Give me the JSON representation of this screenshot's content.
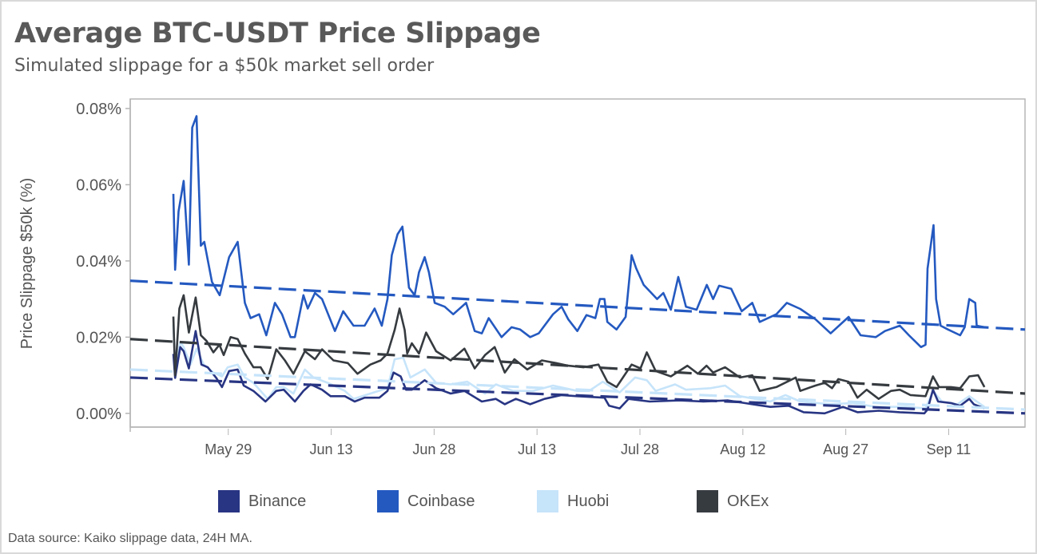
{
  "title": "Average BTC-USDT Price Slippage",
  "subtitle": "Simulated slippage for a $50k market sell order",
  "footer": "Data source: Kaiko slippage data, 24H MA.",
  "chart_data": {
    "type": "line",
    "title": "Average BTC-USDT Price Slippage",
    "subtitle": "Simulated slippage for a $50k market sell order",
    "xlabel": "",
    "ylabel": "Price Slippage $50k (%)",
    "x_format": "MM-DD HH:MM",
    "xlim": [
      "05-14 17:00",
      "09-22 03:00"
    ],
    "ylim": [
      -0.0036,
      0.0825
    ],
    "yticks": [
      0,
      0.02,
      0.04,
      0.06,
      0.08
    ],
    "ytick_labels": [
      "0.00%",
      "0.02%",
      "0.04%",
      "0.06%",
      "0.08%"
    ],
    "xticks": [
      "05-29 00:00",
      "06-13 00:00",
      "06-28 00:00",
      "07-13 00:00",
      "07-28 00:00",
      "08-12 00:00",
      "08-27 00:00",
      "09-11 00:00"
    ],
    "xtick_labels": [
      "May 29",
      "Jun 13",
      "Jun 28",
      "Jul 13",
      "Jul 28",
      "Aug 12",
      "Aug 27",
      "Sep 11"
    ],
    "grid": false,
    "legend_position": "bottom",
    "series": [
      {
        "name": "Binance",
        "color": "#283583",
        "x": [
          "05-21 00:00",
          "05-21 06:00",
          "05-22 00:00",
          "05-22 12:00",
          "05-23 06:00",
          "05-24 06:00",
          "05-25 02:00",
          "05-26 00:00",
          "05-27 06:00",
          "05-28 02:00",
          "05-29 03:00",
          "05-30 09:00",
          "05-31 06:00",
          "06-01 16:00",
          "06-03 10:00",
          "06-05 00:00",
          "06-06 02:00",
          "06-07 17:00",
          "06-08 23:00",
          "06-10 00:00",
          "06-11 16:00",
          "06-12 22:00",
          "06-15 00:00",
          "06-16 10:00",
          "06-17 21:00",
          "06-20 00:00",
          "06-21 05:00",
          "06-22 02:00",
          "06-23 03:00",
          "06-23 22:00",
          "06-24 18:00",
          "06-26 15:00",
          "06-28 07:00",
          "06-30 10:00",
          "07-02 10:00",
          "07-04 23:00",
          "07-07 00:00",
          "07-08 07:00",
          "07-09 22:00",
          "07-12 00:00",
          "07-14 02:00",
          "07-16 14:00",
          "07-18 21:00",
          "07-22 20:00",
          "07-23 12:00",
          "07-25 01:00",
          "07-26 08:00",
          "07-29 10:00",
          "08-02 19:00",
          "08-06 06:00",
          "08-09 20:00",
          "08-13 09:00",
          "08-16 00:00",
          "08-18 16:00",
          "08-20 21:00",
          "08-23 22:00",
          "08-26 14:00",
          "08-28 17:00",
          "08-31 19:00",
          "09-03 21:00",
          "09-07 11:00",
          "09-07 22:00",
          "09-08 17:00",
          "09-09 11:00",
          "09-11 08:00",
          "09-12 16:00",
          "09-14 00:00",
          "09-14 16:00",
          "09-16 05:00"
        ],
        "y": [
          0.0156,
          0.0093,
          0.0174,
          0.0163,
          0.0118,
          0.0216,
          0.0128,
          0.0121,
          0.0093,
          0.0069,
          0.0111,
          0.0115,
          0.0073,
          0.0059,
          0.0031,
          0.0059,
          0.0062,
          0.0031,
          0.0059,
          0.0076,
          0.0062,
          0.0045,
          0.0045,
          0.0031,
          0.0041,
          0.0041,
          0.0059,
          0.0107,
          0.0097,
          0.0062,
          0.0062,
          0.0087,
          0.0066,
          0.0052,
          0.0059,
          0.0031,
          0.0038,
          0.0024,
          0.0038,
          0.0024,
          0.0038,
          0.0048,
          0.0045,
          0.0041,
          0.002,
          0.0013,
          0.0038,
          0.0031,
          0.0034,
          0.0031,
          0.0034,
          0.0024,
          0.0017,
          0.002,
          0.0003,
          0.0,
          0.0017,
          0.0003,
          0.0007,
          0.0003,
          0.0,
          0.001,
          0.0062,
          0.0031,
          0.0027,
          0.002,
          0.0038,
          0.0024,
          0.0013
        ],
        "trend": {
          "x": [
            "05-14 17:00",
            "09-22 03:00"
          ],
          "y": [
            0.0094,
            0.0
          ]
        }
      },
      {
        "name": "Coinbase",
        "color": "#2459c0",
        "x": [
          "05-21 00:00",
          "05-21 06:00",
          "05-21 18:00",
          "05-22 12:00",
          "05-23 06:00",
          "05-23 18:00",
          "05-24 09:00",
          "05-25 00:00",
          "05-25 12:00",
          "05-26 15:00",
          "05-27 18:00",
          "05-29 03:00",
          "05-30 09:00",
          "05-31 10:00",
          "06-01 06:00",
          "06-02 12:00",
          "06-03 13:00",
          "06-04 19:00",
          "06-05 20:00",
          "06-07 02:00",
          "06-07 17:00",
          "06-08 23:00",
          "06-09 14:00",
          "06-10 15:00",
          "06-11 16:00",
          "06-13 13:00",
          "06-14 18:00",
          "06-16 06:00",
          "06-17 21:00",
          "06-19 08:00",
          "06-20 09:00",
          "06-21 05:00",
          "06-21 20:00",
          "06-22 16:00",
          "06-23 09:00",
          "06-24 08:00",
          "06-25 04:00",
          "06-25 19:00",
          "06-26 15:00",
          "06-27 06:00",
          "06-28 02:00",
          "06-29 13:00",
          "06-30 19:00",
          "07-02 16:00",
          "07-03 22:00",
          "07-04 23:00",
          "07-05 23:00",
          "07-07 20:00",
          "07-09 07:00",
          "07-10 13:00",
          "07-12 00:00",
          "07-13 06:00",
          "07-15 08:00",
          "07-16 14:00",
          "07-17 13:00",
          "07-18 21:00",
          "07-20 05:00",
          "07-21 12:00",
          "07-22 04:00",
          "07-22 20:00",
          "07-23 06:00",
          "07-24 14:00",
          "07-25 22:00",
          "07-26 19:00",
          "07-27 11:00",
          "07-28 13:00",
          "07-30 12:00",
          "07-31 10:00",
          "08-01 12:00",
          "08-02 14:00",
          "08-03 17:00",
          "08-05 06:00",
          "08-06 18:00",
          "08-07 16:00",
          "08-08 13:00",
          "08-10 07:00",
          "08-11 20:00",
          "08-13 09:00",
          "08-14 11:00",
          "08-16 21:00",
          "08-18 10:00",
          "08-20 09:00",
          "08-22 14:00",
          "08-24 19:00",
          "08-27 10:00",
          "08-29 04:00",
          "08-31 09:00",
          "09-01 17:00",
          "09-03 21:00",
          "09-05 05:00",
          "09-06 23:00",
          "09-07 15:00",
          "09-07 22:00",
          "09-08 19:00",
          "09-09 04:00",
          "09-09 20:00",
          "09-10 22:00",
          "09-12 16:00",
          "09-13 08:00",
          "09-14 00:00",
          "09-14 21:00",
          "09-15 02:00",
          "09-16 05:00"
        ],
        "y": [
          0.0576,
          0.0377,
          0.053,
          0.061,
          0.039,
          0.075,
          0.078,
          0.044,
          0.045,
          0.0345,
          0.031,
          0.041,
          0.045,
          0.029,
          0.025,
          0.026,
          0.0205,
          0.029,
          0.026,
          0.02,
          0.02,
          0.031,
          0.0275,
          0.0316,
          0.03,
          0.0216,
          0.0268,
          0.023,
          0.023,
          0.0275,
          0.023,
          0.03,
          0.0415,
          0.047,
          0.049,
          0.033,
          0.031,
          0.037,
          0.041,
          0.037,
          0.029,
          0.028,
          0.026,
          0.029,
          0.0216,
          0.021,
          0.025,
          0.02,
          0.0226,
          0.022,
          0.02,
          0.021,
          0.026,
          0.028,
          0.0247,
          0.0216,
          0.0258,
          0.025,
          0.03,
          0.03,
          0.024,
          0.022,
          0.0253,
          0.0415,
          0.038,
          0.0337,
          0.03,
          0.0316,
          0.0272,
          0.0358,
          0.028,
          0.0272,
          0.0337,
          0.03,
          0.0335,
          0.0327,
          0.0268,
          0.029,
          0.024,
          0.026,
          0.029,
          0.0274,
          0.0247,
          0.021,
          0.0253,
          0.0205,
          0.02,
          0.0216,
          0.023,
          0.0205,
          0.0174,
          0.018,
          0.038,
          0.0494,
          0.03,
          0.023,
          0.022,
          0.0205,
          0.0226,
          0.03,
          0.029,
          0.023,
          0.0226
        ],
        "trend": {
          "x": [
            "05-14 17:00",
            "09-22 03:00"
          ],
          "y": [
            0.0348,
            0.022
          ]
        }
      },
      {
        "name": "Huobi",
        "color": "#c6e4fa",
        "x": [
          "05-21 00:00",
          "05-21 06:00",
          "05-22 00:00",
          "05-22 12:00",
          "05-23 12:00",
          "05-24 09:00",
          "05-25 10:00",
          "05-26 20:00",
          "05-28 02:00",
          "05-28 22:00",
          "05-30 09:00",
          "05-31 10:00",
          "06-01 16:00",
          "06-03 18:00",
          "06-05 00:00",
          "06-06 02:00",
          "06-07 12:00",
          "06-09 04:00",
          "06-10 10:00",
          "06-12 12:00",
          "06-15 00:00",
          "06-16 06:00",
          "06-18 17:00",
          "06-21 05:00",
          "06-22 06:00",
          "06-23 12:00",
          "06-24 13:00",
          "06-26 15:00",
          "06-28 07:00",
          "06-30 10:00",
          "07-02 20:00",
          "07-05 10:00",
          "07-07 00:00",
          "07-09 12:00",
          "07-12 10:00",
          "07-15 08:00",
          "07-18 21:00",
          "07-20 14:00",
          "07-22 14:00",
          "07-25 01:00",
          "07-27 07:00",
          "07-29 00:00",
          "07-30 07:00",
          "08-02 03:00",
          "08-03 17:00",
          "08-07 06:00",
          "08-09 10:00",
          "08-11 14:00",
          "08-13 19:00",
          "08-16 00:00",
          "08-18 05:00",
          "08-20 09:00",
          "08-24 19:00",
          "08-27 22:00",
          "08-31 09:00",
          "09-04 19:00",
          "09-07 15:00",
          "09-08 17:00",
          "09-10 00:00",
          "09-12 06:00",
          "09-14 00:00",
          "09-16 05:00"
        ],
        "y": [
          0.0233,
          0.0121,
          0.0187,
          0.0174,
          0.0128,
          0.017,
          0.0128,
          0.0107,
          0.0097,
          0.0121,
          0.0128,
          0.0094,
          0.008,
          0.0038,
          0.0069,
          0.0069,
          0.0052,
          0.0115,
          0.0094,
          0.008,
          0.0059,
          0.0038,
          0.0052,
          0.0066,
          0.0142,
          0.0146,
          0.0094,
          0.0115,
          0.008,
          0.0076,
          0.0083,
          0.0052,
          0.0076,
          0.0059,
          0.0059,
          0.0073,
          0.0059,
          0.0059,
          0.0083,
          0.0055,
          0.0094,
          0.0087,
          0.0059,
          0.0076,
          0.0062,
          0.0066,
          0.0073,
          0.0045,
          0.0038,
          0.0031,
          0.0048,
          0.0031,
          0.0024,
          0.0027,
          0.0017,
          0.0017,
          0.0013,
          0.0059,
          0.0031,
          0.0024,
          0.0045,
          0.0017
        ],
        "trend": {
          "x": [
            "05-14 17:00",
            "09-22 03:00"
          ],
          "y": [
            0.0115,
            0.001
          ]
        }
      },
      {
        "name": "OKEx",
        "color": "#363b40",
        "x": [
          "05-21 00:00",
          "05-21 06:00",
          "05-21 21:00",
          "05-22 12:00",
          "05-23 06:00",
          "05-24 06:00",
          "05-25 00:00",
          "05-25 20:00",
          "05-26 20:00",
          "05-27 17:00",
          "05-28 08:00",
          "05-29 08:00",
          "05-30 09:00",
          "05-31 10:00",
          "06-01 16:00",
          "06-02 17:00",
          "06-03 18:00",
          "06-05 00:00",
          "06-06 06:00",
          "06-07 12:00",
          "06-09 04:00",
          "06-10 15:00",
          "06-11 16:00",
          "06-13 08:00",
          "06-15 10:00",
          "06-16 20:00",
          "06-18 17:00",
          "06-20 05:00",
          "06-21 05:00",
          "06-22 06:00",
          "06-22 23:00",
          "06-23 17:00",
          "06-24 02:00",
          "06-24 18:00",
          "06-25 19:00",
          "06-26 20:00",
          "06-28 07:00",
          "06-30 10:00",
          "07-02 10:00",
          "07-03 22:00",
          "07-05 10:00",
          "07-06 20:00",
          "07-08 07:00",
          "07-09 17:00",
          "07-11 14:00",
          "07-13 17:00",
          "07-15 18:00",
          "07-17 13:00",
          "07-19 18:00",
          "07-21 23:00",
          "07-23 06:00",
          "07-24 14:00",
          "07-26 19:00",
          "07-28 02:00",
          "07-29 00:00",
          "07-30 07:00",
          "08-01 12:00",
          "08-03 22:00",
          "08-05 11:00",
          "08-06 17:00",
          "08-07 16:00",
          "08-09 10:00",
          "08-11 14:00",
          "08-13 09:00",
          "08-14 11:00",
          "08-16 21:00",
          "08-19 17:00",
          "08-20 09:00",
          "08-22 14:00",
          "08-23 22:00",
          "08-25 00:00",
          "08-25 22:00",
          "08-27 10:00",
          "08-28 17:00",
          "08-30 01:00",
          "08-31 19:00",
          "09-02 14:00",
          "09-03 21:00",
          "09-05 10:00",
          "09-07 15:00",
          "09-08 17:00",
          "09-09 14:00",
          "09-11 08:00",
          "09-12 16:00",
          "09-14 00:00",
          "09-15 07:00",
          "09-16 05:00"
        ],
        "y": [
          0.0254,
          0.01,
          0.0275,
          0.031,
          0.0212,
          0.0304,
          0.0205,
          0.019,
          0.016,
          0.018,
          0.0153,
          0.02,
          0.0195,
          0.0157,
          0.0121,
          0.0121,
          0.009,
          0.0168,
          0.0139,
          0.0104,
          0.0163,
          0.0142,
          0.0168,
          0.0139,
          0.0132,
          0.0104,
          0.0128,
          0.0139,
          0.0157,
          0.0219,
          0.0275,
          0.0219,
          0.0157,
          0.0184,
          0.0157,
          0.0212,
          0.0163,
          0.0139,
          0.017,
          0.0118,
          0.0153,
          0.0174,
          0.0107,
          0.0142,
          0.0115,
          0.0139,
          0.0132,
          0.0125,
          0.0121,
          0.0128,
          0.0083,
          0.0069,
          0.0128,
          0.0118,
          0.016,
          0.0111,
          0.0097,
          0.0125,
          0.0104,
          0.0125,
          0.0107,
          0.0121,
          0.0094,
          0.01,
          0.0059,
          0.0069,
          0.0094,
          0.0059,
          0.0073,
          0.008,
          0.0066,
          0.009,
          0.0083,
          0.0041,
          0.0062,
          0.0038,
          0.0059,
          0.0062,
          0.0048,
          0.0045,
          0.0097,
          0.0069,
          0.0069,
          0.0066,
          0.0097,
          0.01,
          0.0069
        ],
        "trend": {
          "x": [
            "05-14 17:00",
            "09-22 03:00"
          ],
          "y": [
            0.0195,
            0.0052
          ]
        }
      }
    ]
  }
}
